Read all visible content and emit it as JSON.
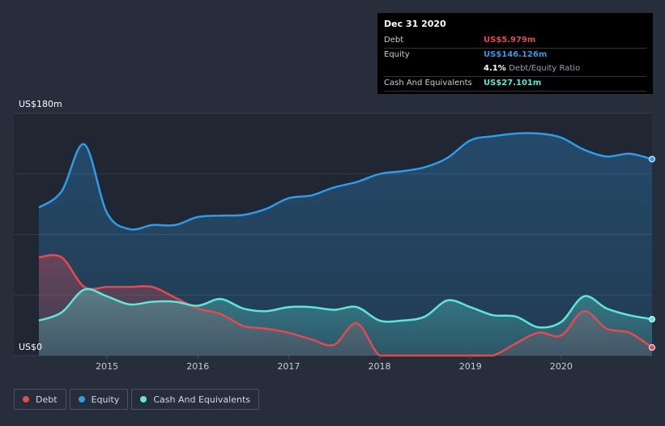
{
  "tooltip": {
    "date": "Dec 31 2020",
    "rows": [
      {
        "label": "Debt",
        "value": "US$5.979m",
        "color": "#e8484f"
      },
      {
        "label": "Equity",
        "value": "US$146.126m",
        "color": "#2f9be9"
      },
      {
        "label": "Cash And Equivalents",
        "value": "US$27.101m",
        "color": "#5ee6d6"
      }
    ],
    "ratio_value": "4.1%",
    "ratio_label": "Debt/Equity Ratio"
  },
  "legend": [
    {
      "label": "Debt",
      "color": "#e8484f"
    },
    {
      "label": "Equity",
      "color": "#2f9be9"
    },
    {
      "label": "Cash And Equivalents",
      "color": "#5ee6d6"
    }
  ],
  "chart_data": {
    "type": "area",
    "y_top_label": "US$180m",
    "y_bottom_label": "US$0",
    "ylim": [
      0,
      180
    ],
    "xlim": [
      2014.25,
      2021.0
    ],
    "x_ticks": [
      2015,
      2016,
      2017,
      2018,
      2019,
      2020
    ],
    "x_tick_labels": [
      "2015",
      "2016",
      "2017",
      "2018",
      "2019",
      "2020"
    ],
    "grid": true,
    "legend_position": "bottom-left",
    "series": [
      {
        "name": "Equity",
        "color": "#2f9be9",
        "x": [
          2014.25,
          2014.5,
          2014.75,
          2015.0,
          2015.25,
          2015.5,
          2015.75,
          2016.0,
          2016.25,
          2016.5,
          2016.75,
          2017.0,
          2017.25,
          2017.5,
          2017.75,
          2018.0,
          2018.25,
          2018.5,
          2018.75,
          2019.0,
          2019.25,
          2019.5,
          2019.75,
          2020.0,
          2020.25,
          2020.5,
          2020.75,
          2021.0
        ],
        "values": [
          110,
          122,
          157,
          106,
          94,
          97,
          97,
          103,
          104,
          104.5,
          109,
          117,
          119,
          125,
          129,
          135,
          137,
          140,
          147,
          160,
          163,
          165,
          165,
          162,
          153,
          148,
          150,
          146
        ]
      },
      {
        "name": "Debt",
        "color": "#e8484f",
        "x": [
          2014.25,
          2014.5,
          2014.75,
          2015.0,
          2015.25,
          2015.5,
          2015.75,
          2016.0,
          2016.25,
          2016.5,
          2016.75,
          2017.0,
          2017.25,
          2017.5,
          2017.75,
          2018.0,
          2018.25,
          2018.5,
          2018.75,
          2019.0,
          2019.25,
          2019.5,
          2019.75,
          2020.0,
          2020.25,
          2020.5,
          2020.75,
          2021.0
        ],
        "values": [
          73,
          73,
          51,
          51,
          51,
          51,
          43,
          35,
          31,
          22,
          20,
          17,
          12,
          8,
          24,
          0,
          0,
          0,
          0,
          0,
          0,
          9,
          17,
          15,
          33,
          20,
          17,
          6
        ]
      },
      {
        "name": "Cash And Equivalents",
        "color": "#5ee6d6",
        "x": [
          2014.25,
          2014.5,
          2014.75,
          2015.0,
          2015.25,
          2015.5,
          2015.75,
          2016.0,
          2016.25,
          2016.5,
          2016.75,
          2017.0,
          2017.25,
          2017.5,
          2017.75,
          2018.0,
          2018.25,
          2018.5,
          2018.75,
          2019.0,
          2019.25,
          2019.5,
          2019.75,
          2020.0,
          2020.25,
          2020.5,
          2020.75,
          2021.0
        ],
        "values": [
          26,
          32,
          49,
          44,
          38,
          40,
          40,
          37,
          42,
          35,
          33,
          36,
          36,
          34,
          36,
          26,
          26,
          29,
          41,
          36,
          30,
          29,
          21,
          25,
          44,
          35,
          30,
          27
        ]
      }
    ]
  }
}
